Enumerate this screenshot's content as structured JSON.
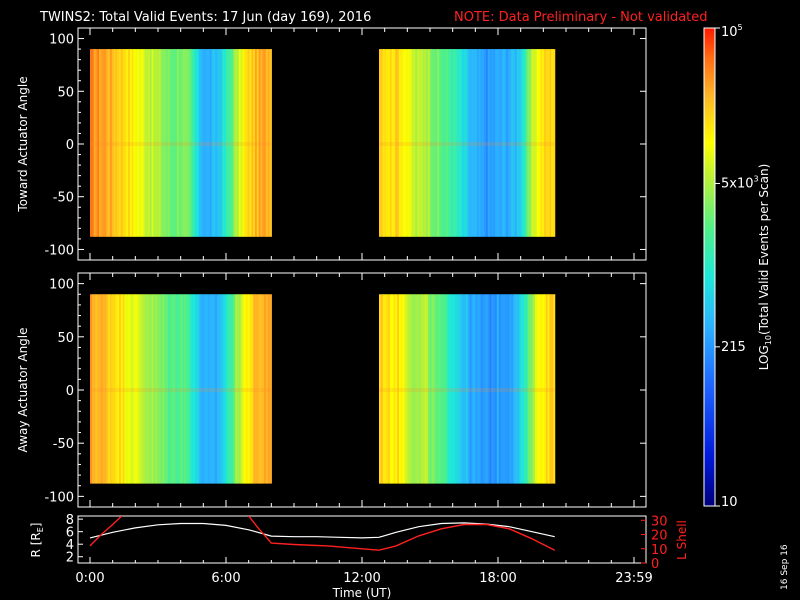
{
  "header": {
    "title": "TWINS2: Total Valid Events: 17 Jun (day 169), 2016",
    "note": "NOTE: Data Preliminary - Not validated",
    "note_color": "#ff2020"
  },
  "stamp": "16 Sep 16",
  "chart_data": [
    {
      "type": "heatmap",
      "ylabel": "Toward Actuator Angle",
      "ylim": [
        -110,
        110
      ],
      "yticks": [
        "100",
        "50",
        "0",
        "-50",
        "-100"
      ],
      "x_hours": [
        0,
        24
      ],
      "data_intervals_hours": [
        [
          0.0,
          8.0
        ],
        [
          12.75,
          20.5
        ]
      ],
      "angle_range": [
        -88,
        90
      ],
      "value_profile_log10": [
        [
          0.0,
          4.6
        ],
        [
          0.6,
          4.55
        ],
        [
          1.2,
          4.35
        ],
        [
          1.6,
          4.25
        ],
        [
          2.0,
          4.05
        ],
        [
          2.4,
          3.9
        ],
        [
          2.8,
          3.75
        ],
        [
          3.2,
          3.6
        ],
        [
          3.6,
          3.4
        ],
        [
          4.0,
          3.55
        ],
        [
          4.4,
          3.35
        ],
        [
          4.8,
          2.7
        ],
        [
          5.2,
          2.45
        ],
        [
          5.6,
          2.6
        ],
        [
          6.0,
          3.0
        ],
        [
          6.4,
          3.6
        ],
        [
          6.8,
          4.1
        ],
        [
          7.2,
          4.35
        ],
        [
          7.6,
          4.45
        ],
        [
          8.0,
          4.5
        ],
        [
          12.75,
          4.4
        ],
        [
          13.2,
          4.2
        ],
        [
          13.6,
          4.3
        ],
        [
          14.0,
          4.0
        ],
        [
          14.4,
          3.7
        ],
        [
          14.8,
          3.8
        ],
        [
          15.2,
          3.5
        ],
        [
          15.6,
          3.3
        ],
        [
          16.0,
          3.2
        ],
        [
          16.4,
          2.85
        ],
        [
          16.8,
          2.55
        ],
        [
          17.2,
          2.4
        ],
        [
          17.6,
          2.35
        ],
        [
          18.0,
          2.45
        ],
        [
          18.4,
          2.5
        ],
        [
          18.8,
          2.6
        ],
        [
          19.2,
          3.1
        ],
        [
          19.6,
          3.9
        ],
        [
          20.0,
          4.2
        ],
        [
          20.5,
          4.3
        ]
      ]
    },
    {
      "type": "heatmap",
      "ylabel": "Away Actuator Angle",
      "ylim": [
        -110,
        110
      ],
      "yticks": [
        "100",
        "50",
        "0",
        "-50",
        "-100"
      ],
      "x_hours": [
        0,
        24
      ],
      "data_intervals_hours": [
        [
          0.0,
          8.0
        ],
        [
          12.75,
          20.5
        ]
      ],
      "angle_range": [
        -88,
        90
      ],
      "value_profile_log10": [
        [
          0.0,
          4.5
        ],
        [
          0.6,
          4.4
        ],
        [
          1.2,
          4.25
        ],
        [
          1.6,
          4.1
        ],
        [
          2.0,
          3.9
        ],
        [
          2.4,
          3.75
        ],
        [
          2.8,
          3.6
        ],
        [
          3.2,
          3.45
        ],
        [
          3.6,
          3.3
        ],
        [
          4.0,
          3.4
        ],
        [
          4.4,
          3.2
        ],
        [
          4.8,
          2.65
        ],
        [
          5.2,
          2.4
        ],
        [
          5.6,
          2.5
        ],
        [
          6.0,
          2.9
        ],
        [
          6.4,
          3.5
        ],
        [
          6.8,
          4.0
        ],
        [
          7.2,
          4.3
        ],
        [
          7.6,
          4.45
        ],
        [
          8.0,
          4.5
        ],
        [
          12.75,
          4.35
        ],
        [
          13.2,
          4.15
        ],
        [
          13.6,
          4.2
        ],
        [
          14.0,
          3.9
        ],
        [
          14.4,
          3.6
        ],
        [
          14.8,
          3.7
        ],
        [
          15.2,
          3.4
        ],
        [
          15.6,
          3.2
        ],
        [
          16.0,
          3.0
        ],
        [
          16.4,
          2.7
        ],
        [
          16.8,
          2.45
        ],
        [
          17.2,
          2.35
        ],
        [
          17.6,
          2.3
        ],
        [
          18.0,
          2.4
        ],
        [
          18.4,
          2.45
        ],
        [
          18.8,
          2.55
        ],
        [
          19.2,
          3.0
        ],
        [
          19.6,
          3.85
        ],
        [
          20.0,
          4.2
        ],
        [
          20.5,
          4.3
        ]
      ]
    },
    {
      "type": "line",
      "ylabel_left": "R [R",
      "ylabel_left_sub": "E",
      "ylabel_left_end": "]",
      "ylabel_right": "L Shell",
      "ylim_left": [
        1,
        8.5
      ],
      "yticks_left": [
        "8",
        "6",
        "4",
        "2"
      ],
      "ylim_right": [
        0,
        33
      ],
      "yticks_right": [
        "30",
        "20",
        "10",
        "0"
      ],
      "xlabel": "Time (UT)",
      "xticks": [
        "0:00",
        "6:00",
        "12:00",
        "18:00",
        "23:59"
      ],
      "x_hours": [
        0,
        24
      ],
      "series": [
        {
          "axis": "left",
          "color": "#ffffff",
          "x": [
            0.0,
            1.0,
            2.0,
            3.0,
            4.0,
            5.0,
            6.0,
            7.0,
            8.0,
            9.0,
            10.0,
            11.0,
            12.0,
            12.75,
            13.5,
            14.5,
            15.5,
            16.5,
            17.5,
            18.5,
            19.5,
            20.5
          ],
          "y": [
            5.0,
            5.9,
            6.6,
            7.1,
            7.3,
            7.3,
            7.0,
            6.3,
            5.3,
            5.2,
            5.2,
            5.1,
            5.0,
            5.1,
            5.9,
            6.8,
            7.3,
            7.4,
            7.2,
            6.8,
            6.0,
            5.2
          ]
        },
        {
          "axis": "right",
          "color": "#ff2020",
          "segments": [
            {
              "x": [
                0.0,
                0.5,
                1.0,
                1.4
              ],
              "y": [
                12,
                20,
                27,
                33
              ]
            },
            {
              "x": [
                7.0,
                7.4,
                8.0,
                9.0,
                10.5,
                12.0,
                12.75,
                13.5,
                14.5,
                15.5,
                16.5,
                17.5,
                18.5,
                19.5,
                20.5
              ],
              "y": [
                33,
                25,
                14,
                13,
                12,
                10,
                9,
                12,
                19,
                24,
                27,
                27,
                24,
                17,
                9
              ]
            }
          ]
        }
      ]
    },
    {
      "type": "colorbar",
      "label": "LOG",
      "label_sub": "10",
      "label_end": "(Total Valid Events per Scan)",
      "ticks": [
        {
          "text": "10",
          "value_log10": 1.0
        },
        {
          "text": "215",
          "value_log10": 2.332
        },
        {
          "text": "5x10",
          "sup": "3",
          "value_log10": 3.699
        },
        {
          "text": "10",
          "sup": "5",
          "value_log10": 5.0
        }
      ],
      "range_log10": [
        1.0,
        5.0
      ]
    }
  ]
}
